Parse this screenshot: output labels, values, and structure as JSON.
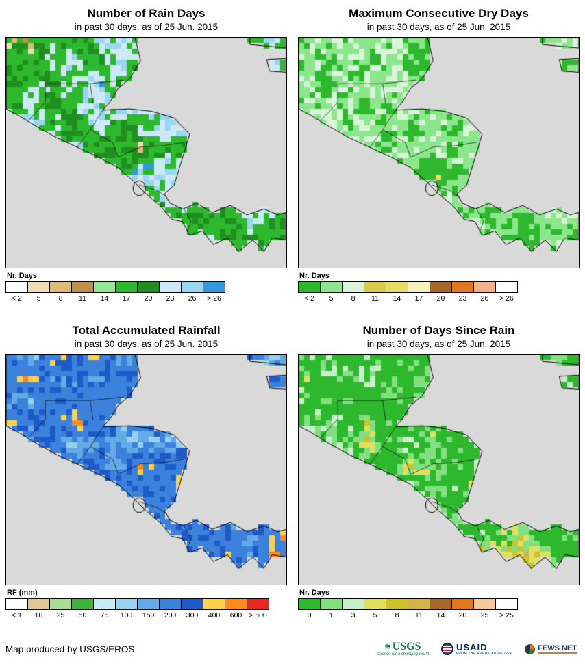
{
  "map_style": {
    "ocean": "#d9d9d9",
    "coastline": "#000000",
    "border_line": "#333333"
  },
  "panels": [
    {
      "id": "rain-days",
      "title": "Number of Rain Days",
      "subtitle": "in past 30 days, as of 25 Jun. 2015",
      "legend_title": "Nr. Days",
      "legend": {
        "labels": [
          "< 2",
          "5",
          "8",
          "11",
          "14",
          "17",
          "20",
          "23",
          "26",
          "> 26"
        ],
        "colors": [
          "#ffffff",
          "#f0ddb5",
          "#ddbb77",
          "#c09048",
          "#96e696",
          "#2eb82e",
          "#1f8f1f",
          "#cce9f5",
          "#99d6f0",
          "#3399dd"
        ]
      },
      "raster": {
        "seed": 3,
        "cell": 8,
        "ybias": 0,
        "colors": [
          {
            "c": "#c09048",
            "w": 0.03
          },
          {
            "c": "#ddbb77",
            "w": 0.06
          },
          {
            "c": "#f0ddb5",
            "w": 0.03
          },
          {
            "c": "#2eb82e",
            "w": 0.18
          },
          {
            "c": "#1f8f1f",
            "w": 0.1
          },
          {
            "c": "#2eb82e",
            "w": 0.2
          },
          {
            "c": "#cce9f5",
            "w": 0.12
          },
          {
            "c": "#99d6f0",
            "w": 0.12
          },
          {
            "c": "#3399dd",
            "w": 0.04
          },
          {
            "c": "#2eb82e",
            "w": 0.12
          }
        ]
      }
    },
    {
      "id": "dry-days",
      "title": "Maximum Consecutive Dry Days",
      "subtitle": "in past 30 days, as of 25 Jun. 2015",
      "legend_title": "Nr. Days",
      "legend": {
        "labels": [
          "< 2",
          "5",
          "8",
          "11",
          "14",
          "17",
          "20",
          "23",
          "26",
          "> 26"
        ],
        "colors": [
          "#2eb82e",
          "#8ce68c",
          "#d9f5d9",
          "#d9cc4d",
          "#e6dc66",
          "#f7f0c0",
          "#a5682a",
          "#e07820",
          "#f0b48c",
          "#ffffff"
        ]
      },
      "raster": {
        "seed": 7,
        "cell": 8,
        "ybias": 0.25,
        "colors": [
          {
            "c": "#a5682a",
            "w": 0.015
          },
          {
            "c": "#d9cc4d",
            "w": 0.045
          },
          {
            "c": "#e6dc66",
            "w": 0.04
          },
          {
            "c": "#2eb82e",
            "w": 0.3
          },
          {
            "c": "#8ce68c",
            "w": 0.18
          },
          {
            "c": "#d9f5d9",
            "w": 0.1
          },
          {
            "c": "#8ce68c",
            "w": 0.08
          },
          {
            "c": "#2eb82e",
            "w": 0.24
          }
        ]
      }
    },
    {
      "id": "rainfall",
      "title": "Total Accumulated Rainfall",
      "subtitle": "in past 30 days, as of 25 Jun. 2015",
      "legend_title": "RF (mm)",
      "legend": {
        "labels": [
          "< 1",
          "10",
          "25",
          "50",
          "75",
          "100",
          "150",
          "200",
          "300",
          "400",
          "600",
          "> 600"
        ],
        "colors": [
          "#ffffff",
          "#e0c896",
          "#aade96",
          "#3cb43c",
          "#c8ecf5",
          "#96d2f0",
          "#64aae6",
          "#3c82dc",
          "#1e5ac8",
          "#ffd24b",
          "#ff8c19",
          "#e6281e"
        ]
      },
      "raster": {
        "seed": 11,
        "cell": 8,
        "ybias": 0,
        "colors": [
          {
            "c": "#e6281e",
            "w": 0.012
          },
          {
            "c": "#ff8c19",
            "w": 0.1
          },
          {
            "c": "#ffd24b",
            "w": 0.1
          },
          {
            "c": "#3c82dc",
            "w": 0.24
          },
          {
            "c": "#1e5ac8",
            "w": 0.1
          },
          {
            "c": "#3c82dc",
            "w": 0.14
          },
          {
            "c": "#64aae6",
            "w": 0.16
          },
          {
            "c": "#96d2f0",
            "w": 0.08
          },
          {
            "c": "#3c82dc",
            "w": 0.068
          }
        ]
      }
    },
    {
      "id": "days-since-rain",
      "title": "Number of Days Since Rain",
      "subtitle": "in past 30 days, as of 25 Jun. 2015",
      "legend_title": "Nr. Days",
      "legend": {
        "labels": [
          "0",
          "1",
          "3",
          "5",
          "8",
          "11",
          "14",
          "20",
          "25",
          "> 25"
        ],
        "colors": [
          "#2eb82e",
          "#82e082",
          "#c8f0c8",
          "#e0e060",
          "#ccc22e",
          "#d2b44a",
          "#a5682a",
          "#e07820",
          "#f5c8a0",
          "#ffffff"
        ]
      },
      "raster": {
        "seed": 19,
        "cell": 8,
        "ybias": 0.45,
        "colors": [
          {
            "c": "#d2b44a",
            "w": 0.02
          },
          {
            "c": "#ccc22e",
            "w": 0.12
          },
          {
            "c": "#e0e060",
            "w": 0.1
          },
          {
            "c": "#82e082",
            "w": 0.14
          },
          {
            "c": "#2eb82e",
            "w": 0.34
          },
          {
            "c": "#c8f0c8",
            "w": 0.06
          },
          {
            "c": "#82e082",
            "w": 0.08
          },
          {
            "c": "#2eb82e",
            "w": 0.14
          }
        ]
      }
    }
  ],
  "footer": {
    "credit": "Map produced by USGS/EROS",
    "logos": {
      "usgs": {
        "name": "USGS",
        "tagline": "science for a changing world",
        "color": "#1b7340"
      },
      "usaid": {
        "name": "USAID",
        "tagline": "FROM THE AMERICAN PEOPLE",
        "color": "#002a6c"
      },
      "fewsnet": {
        "name": "FEWS NET",
        "color": "#1a3a6b"
      }
    }
  }
}
